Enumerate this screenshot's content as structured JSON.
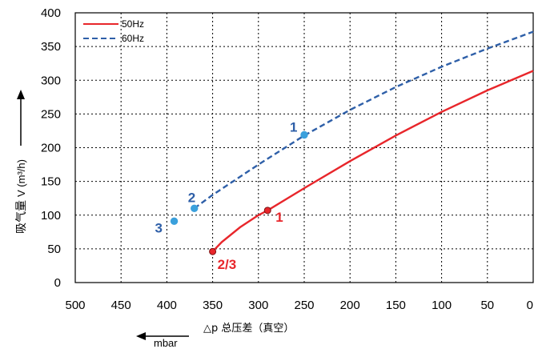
{
  "chart_data": {
    "type": "line",
    "xlabel": "△p 总压差（真空）",
    "ylabel_cjk": "吸气量",
    "ylabel_latin": "V (m³/h)",
    "x_unit": "mbar",
    "xlim": [
      500,
      0
    ],
    "ylim": [
      0,
      400
    ],
    "x_ticks": [
      500,
      450,
      400,
      350,
      300,
      250,
      200,
      150,
      100,
      50,
      0
    ],
    "y_ticks": [
      0,
      50,
      100,
      150,
      200,
      250,
      300,
      350,
      400
    ],
    "x_reversed": true,
    "grid": true,
    "legend_position": "top-left",
    "series": [
      {
        "name": "50Hz",
        "color": "#e8262b",
        "line_style": "solid",
        "x": [
          350,
          340,
          320,
          300,
          290,
          250,
          200,
          150,
          100,
          50,
          0
        ],
        "y": [
          46,
          60,
          82,
          100,
          107,
          140,
          180,
          218,
          253,
          285,
          314
        ],
        "points": [
          {
            "x": 290,
            "y": 107,
            "label": "1"
          },
          {
            "x": 350,
            "y": 46,
            "label": "2/3"
          }
        ],
        "label_color": "#e8262b"
      },
      {
        "name": "60Hz",
        "color": "#2e5fa8",
        "line_style": "dashed",
        "x": [
          370,
          350,
          300,
          250,
          200,
          150,
          100,
          50,
          0
        ],
        "y": [
          110,
          130,
          175,
          218,
          256,
          290,
          320,
          347,
          372
        ],
        "points": [
          {
            "x": 250,
            "y": 219,
            "label": "1"
          },
          {
            "x": 370,
            "y": 110,
            "label": "2"
          },
          {
            "x": 392,
            "y": 91,
            "label": "3"
          }
        ],
        "point_color": "#3aa0dc",
        "label_color": "#2e5fa8"
      }
    ]
  }
}
